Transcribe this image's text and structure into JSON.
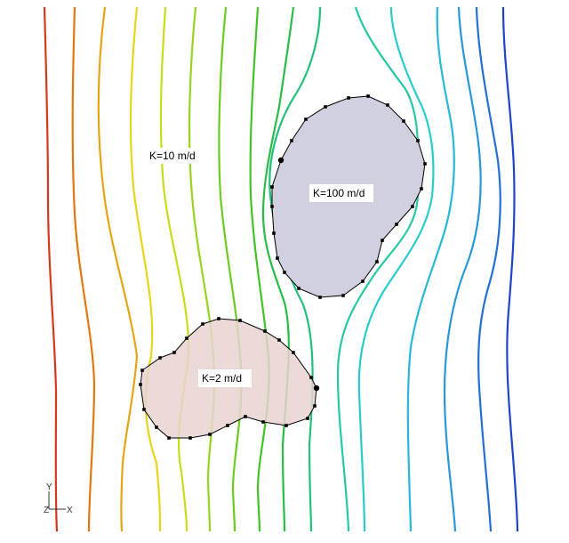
{
  "viewport": {
    "background": "#ffffff",
    "axis_triad": {
      "y_label": "Y",
      "z_label": "Z",
      "x_label": "X"
    }
  },
  "contour_colors": [
    "#d43a1a",
    "#e07a10",
    "#e6a514",
    "#e8d41a",
    "#c8dc1a",
    "#96d41e",
    "#6ccc22",
    "#42c428",
    "#2abc48",
    "#22c07a",
    "#26c8a6",
    "#28cccc",
    "#28b8d8",
    "#2898d8",
    "#2470d4",
    "#1c44cc"
  ],
  "zones": [
    {
      "id": "low_k",
      "label": "K=2 m/d",
      "fill": "#e8d4d0"
    },
    {
      "id": "high_k",
      "label": "K=100 m/d",
      "fill": "#d0d0e0"
    }
  ],
  "background_zone_label": "K=10 m/d"
}
